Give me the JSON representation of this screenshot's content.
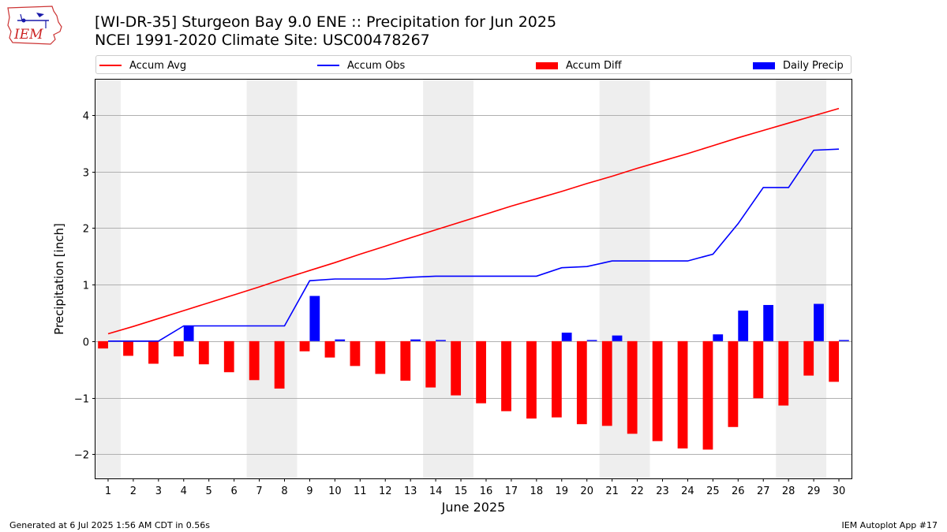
{
  "header": {
    "title_line1": "[WI-DR-35] Sturgeon Bay 9.0 ENE :: Precipitation for Jun 2025",
    "title_line2": "NCEI 1991-2020 Climate Site: USC00478267",
    "logo_text": "IEM"
  },
  "legend": [
    {
      "label": "Accum Avg",
      "color": "#ff0000",
      "kind": "line"
    },
    {
      "label": "Accum Obs",
      "color": "#0000ff",
      "kind": "line"
    },
    {
      "label": "Accum Diff",
      "color": "#ff0000",
      "kind": "bar"
    },
    {
      "label": "Daily Precip",
      "color": "#0000ff",
      "kind": "bar"
    }
  ],
  "footer": {
    "left": "Generated at 6 Jul 2025 1:56 AM CDT in 0.56s",
    "right": "IEM Autoplot App #17"
  },
  "chart_data": {
    "type": "bar",
    "xlabel": "June 2025",
    "ylabel": "Precipitation [inch]",
    "ylim": [
      -2.43,
      4.63
    ],
    "yticks": [
      -2,
      -1,
      0,
      1,
      2,
      3,
      4
    ],
    "ytick_labels": [
      "−2",
      "−1",
      "0",
      "1",
      "2",
      "3",
      "4"
    ],
    "grid": "horizontal",
    "legend_position": "top",
    "categories": [
      "1",
      "2",
      "3",
      "4",
      "5",
      "6",
      "7",
      "8",
      "9",
      "10",
      "11",
      "12",
      "13",
      "14",
      "15",
      "16",
      "17",
      "18",
      "19",
      "20",
      "21",
      "22",
      "23",
      "24",
      "25",
      "26",
      "27",
      "28",
      "29",
      "30"
    ],
    "weekend_shading": [
      [
        1,
        1
      ],
      [
        7,
        8
      ],
      [
        14,
        15
      ],
      [
        21,
        22
      ],
      [
        28,
        29
      ]
    ],
    "series": [
      {
        "name": "Accum Avg",
        "kind": "line",
        "color": "#ff0000",
        "values": [
          0.13,
          0.26,
          0.4,
          0.54,
          0.68,
          0.82,
          0.96,
          1.11,
          1.25,
          1.39,
          1.54,
          1.68,
          1.83,
          1.97,
          2.11,
          2.25,
          2.39,
          2.52,
          2.65,
          2.79,
          2.92,
          3.06,
          3.19,
          3.32,
          3.46,
          3.6,
          3.73,
          3.86,
          3.99,
          4.12
        ]
      },
      {
        "name": "Accum Obs",
        "kind": "line",
        "color": "#0000ff",
        "values": [
          0.0,
          0.0,
          0.0,
          0.27,
          0.27,
          0.27,
          0.27,
          0.27,
          1.07,
          1.1,
          1.1,
          1.1,
          1.13,
          1.15,
          1.15,
          1.15,
          1.15,
          1.15,
          1.3,
          1.32,
          1.42,
          1.42,
          1.42,
          1.42,
          1.54,
          2.08,
          2.72,
          2.72,
          3.38,
          3.4
        ]
      },
      {
        "name": "Accum Diff",
        "kind": "bar",
        "color": "#ff0000",
        "values": [
          -0.13,
          -0.26,
          -0.4,
          -0.27,
          -0.41,
          -0.55,
          -0.69,
          -0.84,
          -0.18,
          -0.29,
          -0.44,
          -0.58,
          -0.7,
          -0.82,
          -0.96,
          -1.1,
          -1.24,
          -1.37,
          -1.35,
          -1.47,
          -1.5,
          -1.64,
          -1.77,
          -1.9,
          -1.92,
          -1.52,
          -1.01,
          -1.14,
          -0.61,
          -0.72
        ]
      },
      {
        "name": "Daily Precip",
        "kind": "bar",
        "color": "#0000ff",
        "values": [
          0.0,
          0.0,
          0.0,
          0.27,
          0.0,
          0.0,
          0.0,
          0.0,
          0.8,
          0.03,
          0.0,
          0.0,
          0.03,
          0.02,
          0.0,
          0.0,
          0.0,
          0.0,
          0.15,
          0.02,
          0.1,
          0.0,
          0.0,
          0.0,
          0.12,
          0.54,
          0.64,
          0.0,
          0.66,
          0.02
        ]
      }
    ]
  }
}
